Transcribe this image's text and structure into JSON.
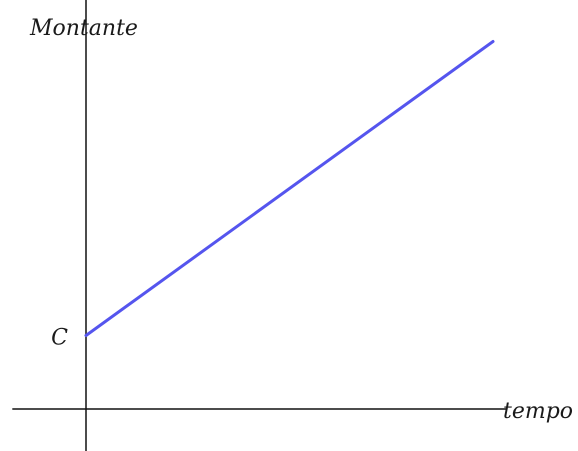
{
  "chart_data": {
    "type": "line",
    "ylabel": "Montante",
    "xlabel": "tempo",
    "intercept_label": "C",
    "x": [
      0,
      10
    ],
    "y": [
      1,
      5
    ],
    "xlim": [
      -1,
      10.2
    ],
    "ylim": [
      -0.4,
      7
    ],
    "grid": false,
    "colors": {
      "line": "#5555ee",
      "axes": "#111111"
    }
  }
}
